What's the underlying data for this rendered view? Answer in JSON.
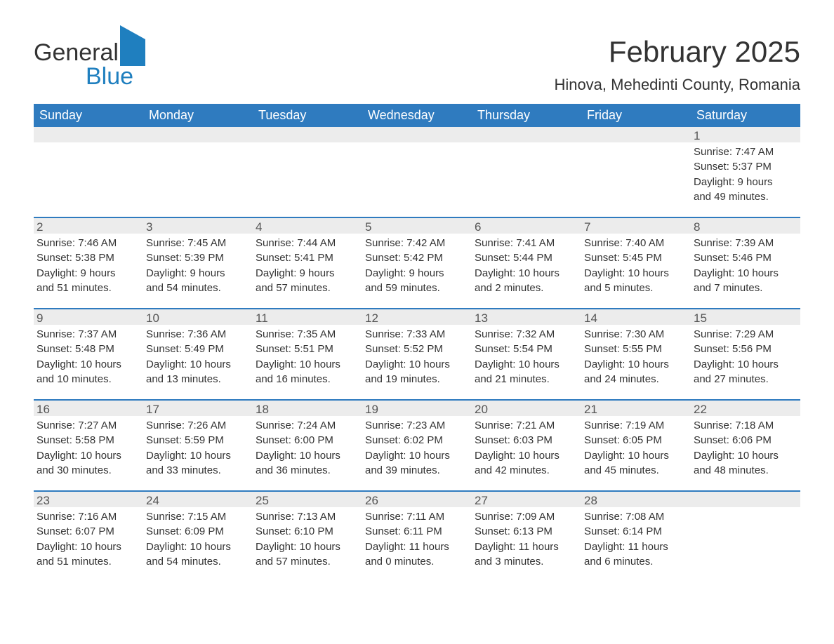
{
  "brand": {
    "word1": "General",
    "word2": "Blue"
  },
  "title": "February 2025",
  "location": "Hinova, Mehedinti County, Romania",
  "colors": {
    "header_bg": "#2f7bbf",
    "header_text": "#ffffff",
    "band_bg": "#ececec",
    "row_border": "#2f7bbf",
    "text": "#333333",
    "brand_blue": "#1f7fbf"
  },
  "fonts": {
    "title_size_pt": 32,
    "location_size_pt": 17,
    "head_size_pt": 14,
    "body_size_pt": 11
  },
  "layout": {
    "cols": 7,
    "rows": 5
  },
  "weekdays": [
    "Sunday",
    "Monday",
    "Tuesday",
    "Wednesday",
    "Thursday",
    "Friday",
    "Saturday"
  ],
  "weeks": [
    [
      {
        "day": "",
        "sunrise": "",
        "sunset": "",
        "daylight1": "",
        "daylight2": ""
      },
      {
        "day": "",
        "sunrise": "",
        "sunset": "",
        "daylight1": "",
        "daylight2": ""
      },
      {
        "day": "",
        "sunrise": "",
        "sunset": "",
        "daylight1": "",
        "daylight2": ""
      },
      {
        "day": "",
        "sunrise": "",
        "sunset": "",
        "daylight1": "",
        "daylight2": ""
      },
      {
        "day": "",
        "sunrise": "",
        "sunset": "",
        "daylight1": "",
        "daylight2": ""
      },
      {
        "day": "",
        "sunrise": "",
        "sunset": "",
        "daylight1": "",
        "daylight2": ""
      },
      {
        "day": "1",
        "sunrise": "Sunrise: 7:47 AM",
        "sunset": "Sunset: 5:37 PM",
        "daylight1": "Daylight: 9 hours",
        "daylight2": "and 49 minutes."
      }
    ],
    [
      {
        "day": "2",
        "sunrise": "Sunrise: 7:46 AM",
        "sunset": "Sunset: 5:38 PM",
        "daylight1": "Daylight: 9 hours",
        "daylight2": "and 51 minutes."
      },
      {
        "day": "3",
        "sunrise": "Sunrise: 7:45 AM",
        "sunset": "Sunset: 5:39 PM",
        "daylight1": "Daylight: 9 hours",
        "daylight2": "and 54 minutes."
      },
      {
        "day": "4",
        "sunrise": "Sunrise: 7:44 AM",
        "sunset": "Sunset: 5:41 PM",
        "daylight1": "Daylight: 9 hours",
        "daylight2": "and 57 minutes."
      },
      {
        "day": "5",
        "sunrise": "Sunrise: 7:42 AM",
        "sunset": "Sunset: 5:42 PM",
        "daylight1": "Daylight: 9 hours",
        "daylight2": "and 59 minutes."
      },
      {
        "day": "6",
        "sunrise": "Sunrise: 7:41 AM",
        "sunset": "Sunset: 5:44 PM",
        "daylight1": "Daylight: 10 hours",
        "daylight2": "and 2 minutes."
      },
      {
        "day": "7",
        "sunrise": "Sunrise: 7:40 AM",
        "sunset": "Sunset: 5:45 PM",
        "daylight1": "Daylight: 10 hours",
        "daylight2": "and 5 minutes."
      },
      {
        "day": "8",
        "sunrise": "Sunrise: 7:39 AM",
        "sunset": "Sunset: 5:46 PM",
        "daylight1": "Daylight: 10 hours",
        "daylight2": "and 7 minutes."
      }
    ],
    [
      {
        "day": "9",
        "sunrise": "Sunrise: 7:37 AM",
        "sunset": "Sunset: 5:48 PM",
        "daylight1": "Daylight: 10 hours",
        "daylight2": "and 10 minutes."
      },
      {
        "day": "10",
        "sunrise": "Sunrise: 7:36 AM",
        "sunset": "Sunset: 5:49 PM",
        "daylight1": "Daylight: 10 hours",
        "daylight2": "and 13 minutes."
      },
      {
        "day": "11",
        "sunrise": "Sunrise: 7:35 AM",
        "sunset": "Sunset: 5:51 PM",
        "daylight1": "Daylight: 10 hours",
        "daylight2": "and 16 minutes."
      },
      {
        "day": "12",
        "sunrise": "Sunrise: 7:33 AM",
        "sunset": "Sunset: 5:52 PM",
        "daylight1": "Daylight: 10 hours",
        "daylight2": "and 19 minutes."
      },
      {
        "day": "13",
        "sunrise": "Sunrise: 7:32 AM",
        "sunset": "Sunset: 5:54 PM",
        "daylight1": "Daylight: 10 hours",
        "daylight2": "and 21 minutes."
      },
      {
        "day": "14",
        "sunrise": "Sunrise: 7:30 AM",
        "sunset": "Sunset: 5:55 PM",
        "daylight1": "Daylight: 10 hours",
        "daylight2": "and 24 minutes."
      },
      {
        "day": "15",
        "sunrise": "Sunrise: 7:29 AM",
        "sunset": "Sunset: 5:56 PM",
        "daylight1": "Daylight: 10 hours",
        "daylight2": "and 27 minutes."
      }
    ],
    [
      {
        "day": "16",
        "sunrise": "Sunrise: 7:27 AM",
        "sunset": "Sunset: 5:58 PM",
        "daylight1": "Daylight: 10 hours",
        "daylight2": "and 30 minutes."
      },
      {
        "day": "17",
        "sunrise": "Sunrise: 7:26 AM",
        "sunset": "Sunset: 5:59 PM",
        "daylight1": "Daylight: 10 hours",
        "daylight2": "and 33 minutes."
      },
      {
        "day": "18",
        "sunrise": "Sunrise: 7:24 AM",
        "sunset": "Sunset: 6:00 PM",
        "daylight1": "Daylight: 10 hours",
        "daylight2": "and 36 minutes."
      },
      {
        "day": "19",
        "sunrise": "Sunrise: 7:23 AM",
        "sunset": "Sunset: 6:02 PM",
        "daylight1": "Daylight: 10 hours",
        "daylight2": "and 39 minutes."
      },
      {
        "day": "20",
        "sunrise": "Sunrise: 7:21 AM",
        "sunset": "Sunset: 6:03 PM",
        "daylight1": "Daylight: 10 hours",
        "daylight2": "and 42 minutes."
      },
      {
        "day": "21",
        "sunrise": "Sunrise: 7:19 AM",
        "sunset": "Sunset: 6:05 PM",
        "daylight1": "Daylight: 10 hours",
        "daylight2": "and 45 minutes."
      },
      {
        "day": "22",
        "sunrise": "Sunrise: 7:18 AM",
        "sunset": "Sunset: 6:06 PM",
        "daylight1": "Daylight: 10 hours",
        "daylight2": "and 48 minutes."
      }
    ],
    [
      {
        "day": "23",
        "sunrise": "Sunrise: 7:16 AM",
        "sunset": "Sunset: 6:07 PM",
        "daylight1": "Daylight: 10 hours",
        "daylight2": "and 51 minutes."
      },
      {
        "day": "24",
        "sunrise": "Sunrise: 7:15 AM",
        "sunset": "Sunset: 6:09 PM",
        "daylight1": "Daylight: 10 hours",
        "daylight2": "and 54 minutes."
      },
      {
        "day": "25",
        "sunrise": "Sunrise: 7:13 AM",
        "sunset": "Sunset: 6:10 PM",
        "daylight1": "Daylight: 10 hours",
        "daylight2": "and 57 minutes."
      },
      {
        "day": "26",
        "sunrise": "Sunrise: 7:11 AM",
        "sunset": "Sunset: 6:11 PM",
        "daylight1": "Daylight: 11 hours",
        "daylight2": "and 0 minutes."
      },
      {
        "day": "27",
        "sunrise": "Sunrise: 7:09 AM",
        "sunset": "Sunset: 6:13 PM",
        "daylight1": "Daylight: 11 hours",
        "daylight2": "and 3 minutes."
      },
      {
        "day": "28",
        "sunrise": "Sunrise: 7:08 AM",
        "sunset": "Sunset: 6:14 PM",
        "daylight1": "Daylight: 11 hours",
        "daylight2": "and 6 minutes."
      },
      {
        "day": "",
        "sunrise": "",
        "sunset": "",
        "daylight1": "",
        "daylight2": ""
      }
    ]
  ]
}
